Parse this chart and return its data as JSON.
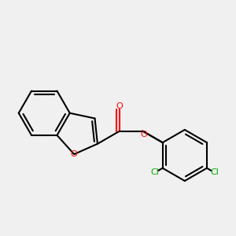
{
  "background_color": "#f0f0f0",
  "bond_color": "#000000",
  "oxygen_color": "#ff0000",
  "chlorine_color": "#00aa00",
  "line_width": 1.5,
  "figsize": [
    3.0,
    3.0
  ],
  "dpi": 100,
  "xlim": [
    -2.0,
    2.8
  ],
  "ylim": [
    -1.6,
    1.6
  ]
}
